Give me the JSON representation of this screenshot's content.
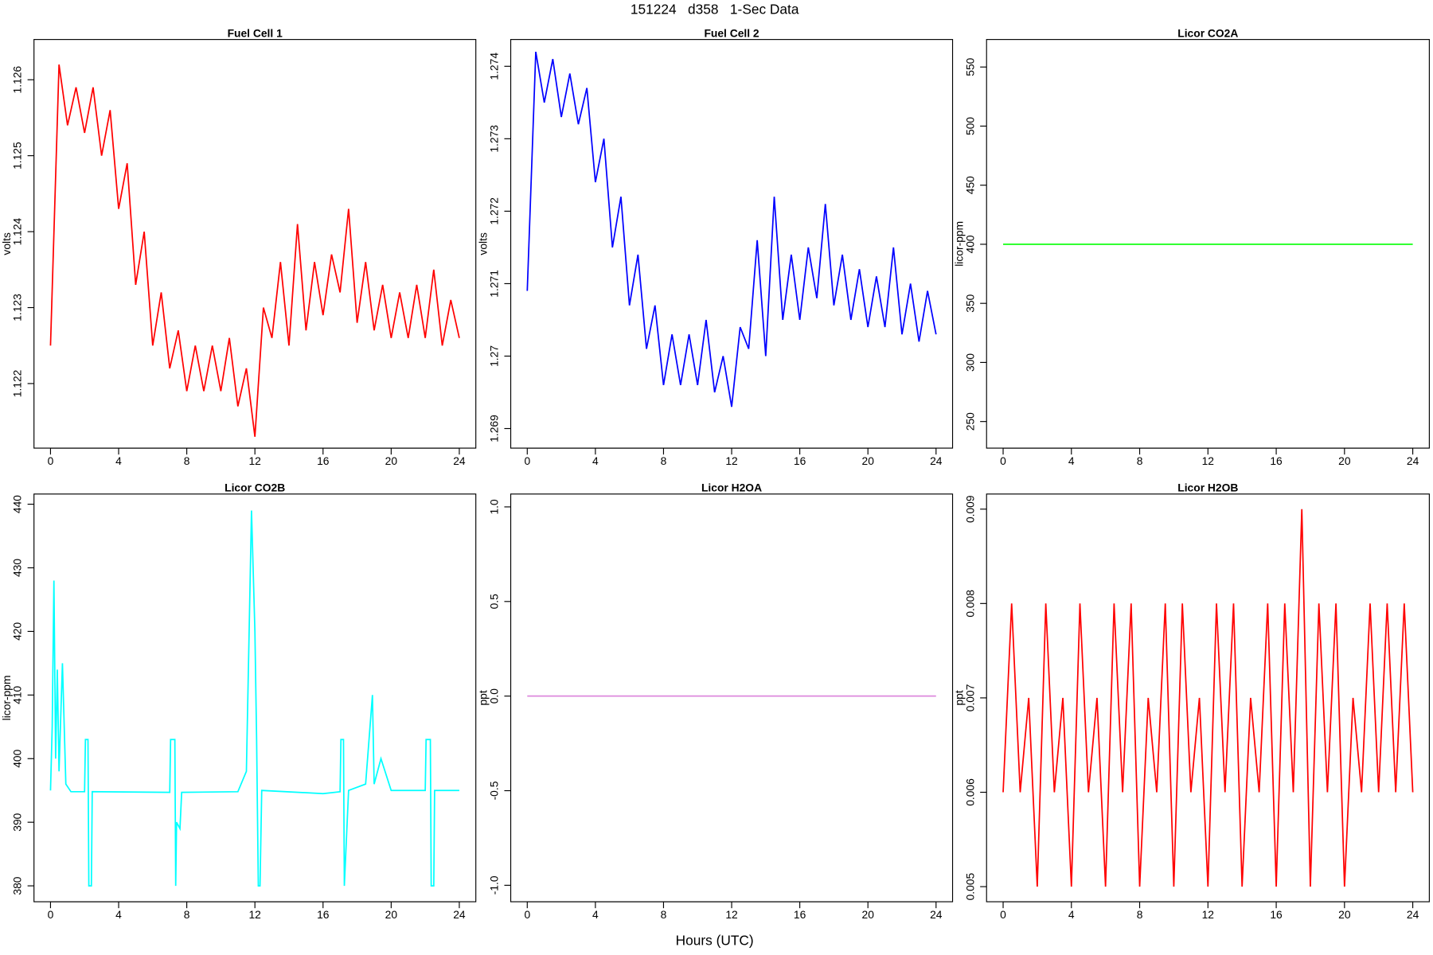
{
  "title": "151224   d358   1-Sec Data",
  "xlabel": "Hours (UTC)",
  "chart_data": [
    {
      "type": "line",
      "title": "Fuel Cell 1",
      "ylabel": "volts",
      "x": [
        0,
        0.5,
        1,
        1.5,
        2,
        2.5,
        3,
        3.5,
        4,
        4.5,
        5,
        5.5,
        6,
        6.5,
        7,
        7.5,
        8,
        8.5,
        9,
        9.5,
        10,
        10.5,
        11,
        11.5,
        12,
        12.5,
        13,
        13.5,
        14,
        14.5,
        15,
        15.5,
        16,
        16.5,
        17,
        17.5,
        18,
        18.5,
        19,
        19.5,
        20,
        20.5,
        21,
        21.5,
        22,
        22.5,
        23,
        23.5,
        24
      ],
      "series": [
        {
          "color": "#ff0000",
          "values": [
            1.1225,
            1.1262,
            1.1254,
            1.1259,
            1.1253,
            1.1259,
            1.125,
            1.1256,
            1.1243,
            1.1249,
            1.1233,
            1.124,
            1.1225,
            1.1232,
            1.1222,
            1.1227,
            1.1219,
            1.1225,
            1.1219,
            1.1225,
            1.1219,
            1.1226,
            1.1217,
            1.1222,
            1.1213,
            1.123,
            1.1226,
            1.1236,
            1.1225,
            1.1241,
            1.1227,
            1.1236,
            1.1229,
            1.1237,
            1.1232,
            1.1243,
            1.1228,
            1.1236,
            1.1227,
            1.1233,
            1.1226,
            1.1232,
            1.1226,
            1.1233,
            1.1226,
            1.1235,
            1.1225,
            1.1231,
            1.1226
          ]
        }
      ],
      "xlim": [
        -0.97,
        24.97
      ],
      "ylim": [
        1.12115,
        1.12653
      ],
      "xticks": [
        0,
        4,
        8,
        12,
        16,
        20,
        24
      ],
      "yticks": [
        1.122,
        1.123,
        1.124,
        1.125,
        1.126
      ]
    },
    {
      "type": "line",
      "title": "Fuel Cell 2",
      "ylabel": "volts",
      "x": [
        0,
        0.5,
        1,
        1.5,
        2,
        2.5,
        3,
        3.5,
        4,
        4.5,
        5,
        5.5,
        6,
        6.5,
        7,
        7.5,
        8,
        8.5,
        9,
        9.5,
        10,
        10.5,
        11,
        11.5,
        12,
        12.5,
        13,
        13.5,
        14,
        14.5,
        15,
        15.5,
        16,
        16.5,
        17,
        17.5,
        18,
        18.5,
        19,
        19.5,
        20,
        20.5,
        21,
        21.5,
        22,
        22.5,
        23,
        23.5,
        24
      ],
      "series": [
        {
          "color": "#0000ff",
          "values": [
            1.2709,
            1.2742,
            1.2735,
            1.2741,
            1.2733,
            1.2739,
            1.2732,
            1.2737,
            1.2724,
            1.273,
            1.2715,
            1.2722,
            1.2707,
            1.2714,
            1.2701,
            1.2707,
            1.2696,
            1.2703,
            1.2696,
            1.2703,
            1.2696,
            1.2705,
            1.2695,
            1.27,
            1.2693,
            1.2704,
            1.2701,
            1.2716,
            1.27,
            1.2722,
            1.2705,
            1.2714,
            1.2705,
            1.2715,
            1.2708,
            1.2721,
            1.2707,
            1.2714,
            1.2705,
            1.2712,
            1.2704,
            1.2711,
            1.2704,
            1.2715,
            1.2703,
            1.271,
            1.2702,
            1.2709,
            1.2703
          ]
        }
      ],
      "xlim": [
        -0.97,
        24.97
      ],
      "ylim": [
        1.26873,
        1.27437
      ],
      "xticks": [
        0,
        4,
        8,
        12,
        16,
        20,
        24
      ],
      "yticks": [
        1.269,
        1.27,
        1.271,
        1.272,
        1.273,
        1.274
      ]
    },
    {
      "type": "line",
      "title": "Licor CO2A",
      "ylabel": "licor-ppm",
      "x": [
        0,
        24
      ],
      "series": [
        {
          "color": "#00ff00",
          "values": [
            400,
            400
          ]
        }
      ],
      "xlim": [
        -0.97,
        24.97
      ],
      "ylim": [
        227.5,
        573.3
      ],
      "xticks": [
        0,
        4,
        8,
        12,
        16,
        20,
        24
      ],
      "yticks": [
        250,
        300,
        350,
        400,
        450,
        500,
        550
      ]
    },
    {
      "type": "line",
      "title": "Licor CO2B",
      "ylabel": "licor-ppm",
      "x": [
        0,
        0.1,
        0.2,
        0.3,
        0.4,
        0.5,
        0.7,
        0.9,
        1.2,
        2,
        2.05,
        2.2,
        2.25,
        2.4,
        2.45,
        7,
        7.05,
        7.3,
        7.35,
        7.4,
        7.6,
        7.7,
        11,
        11.5,
        11.8,
        12,
        12.1,
        12.2,
        12.3,
        12.4,
        16,
        17,
        17.05,
        17.2,
        17.25,
        17.4,
        17.5,
        18.5,
        18.9,
        19,
        19.4,
        20,
        22,
        22.05,
        22.3,
        22.35,
        22.5,
        22.55,
        24
      ],
      "series": [
        {
          "color": "#00ffff",
          "values": [
            395,
            405,
            428,
            400,
            414,
            398,
            415,
            396,
            394.8,
            394.8,
            403,
            403,
            380,
            380,
            394.8,
            394.7,
            403,
            403,
            380,
            390,
            389,
            394.7,
            394.8,
            398,
            439,
            420,
            403,
            380,
            380,
            395,
            394.5,
            394.8,
            403,
            403,
            380,
            389,
            395,
            396,
            410,
            396,
            400,
            395,
            395,
            403,
            403,
            380,
            380,
            395,
            395
          ]
        }
      ],
      "xlim": [
        -0.97,
        24.97
      ],
      "ylim": [
        377.5,
        441.6
      ],
      "xticks": [
        0,
        4,
        8,
        12,
        16,
        20,
        24
      ],
      "yticks": [
        380,
        390,
        400,
        410,
        420,
        430,
        440
      ]
    },
    {
      "type": "line",
      "title": "Licor H2OA",
      "ylabel": "ppt",
      "x": [
        0,
        24
      ],
      "series": [
        {
          "color": "#dd88dd",
          "values": [
            0,
            0
          ]
        }
      ],
      "xlim": [
        -0.97,
        24.97
      ],
      "ylim": [
        -1.087,
        1.068
      ],
      "xticks": [
        0,
        4,
        8,
        12,
        16,
        20,
        24
      ],
      "yticks": [
        {
          "value": -1,
          "label": "-1.0"
        },
        -0.5,
        {
          "value": 0,
          "label": "0.0"
        },
        0.5,
        {
          "value": 1,
          "label": "1.0"
        }
      ]
    },
    {
      "type": "line",
      "title": "Licor H2OB",
      "ylabel": "ppt",
      "x": [
        0,
        0.5,
        1,
        1.5,
        2,
        2.5,
        3,
        3.5,
        4,
        4.5,
        5,
        5.5,
        6,
        6.5,
        7,
        7.5,
        8,
        8.5,
        9,
        9.5,
        10,
        10.5,
        11,
        11.5,
        12,
        12.5,
        13,
        13.5,
        14,
        14.5,
        15,
        15.5,
        16,
        16.5,
        17,
        17.5,
        18,
        18.5,
        19,
        19.5,
        20,
        20.5,
        21,
        21.5,
        22,
        22.5,
        23,
        23.5,
        24
      ],
      "series": [
        {
          "color": "#ff0000",
          "values": [
            0.006,
            0.008,
            0.006,
            0.007,
            0.005,
            0.008,
            0.006,
            0.007,
            0.005,
            0.008,
            0.006,
            0.007,
            0.005,
            0.008,
            0.006,
            0.008,
            0.005,
            0.007,
            0.006,
            0.008,
            0.005,
            0.008,
            0.006,
            0.007,
            0.005,
            0.008,
            0.006,
            0.008,
            0.005,
            0.007,
            0.006,
            0.008,
            0.005,
            0.008,
            0.006,
            0.009,
            0.005,
            0.008,
            0.006,
            0.008,
            0.005,
            0.007,
            0.006,
            0.008,
            0.006,
            0.008,
            0.006,
            0.008,
            0.006
          ]
        }
      ],
      "xlim": [
        -0.97,
        24.97
      ],
      "ylim": [
        0.00484,
        0.00916
      ],
      "xticks": [
        0,
        4,
        8,
        12,
        16,
        20,
        24
      ],
      "yticks": [
        0.005,
        0.006,
        0.007,
        0.008,
        0.009
      ]
    }
  ]
}
